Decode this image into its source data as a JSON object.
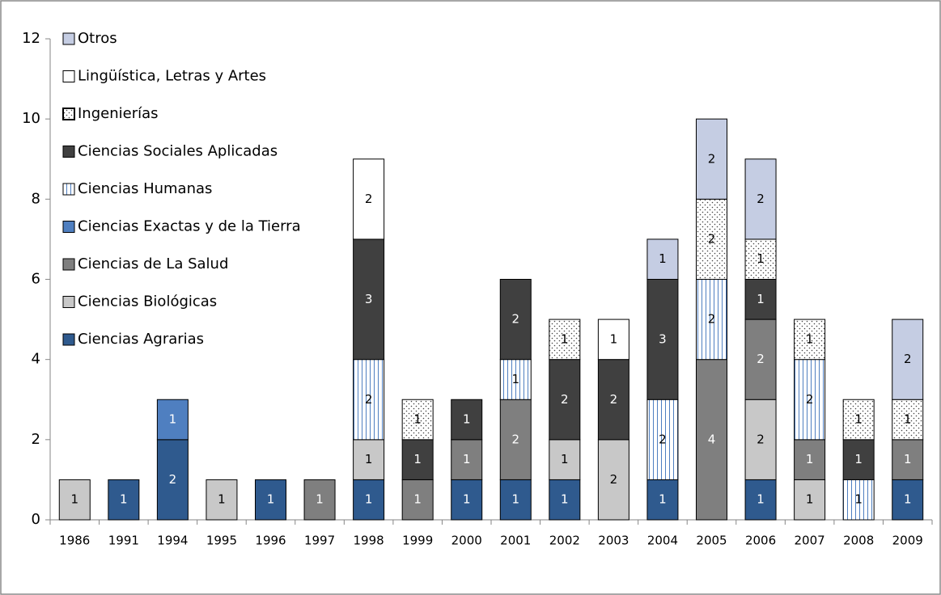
{
  "chart_data": {
    "type": "stacked-bar",
    "categories": [
      "1986",
      "1991",
      "1994",
      "1995",
      "1996",
      "1997",
      "1998",
      "1999",
      "2000",
      "2001",
      "2002",
      "2003",
      "2004",
      "2005",
      "2006",
      "2007",
      "2008",
      "2009"
    ],
    "series": [
      {
        "name": "Ciencias Agrarias",
        "color": "#2f5a8e",
        "values": [
          null,
          1,
          2,
          null,
          1,
          null,
          1,
          null,
          1,
          1,
          1,
          null,
          1,
          null,
          1,
          null,
          null,
          1
        ]
      },
      {
        "name": "Ciencias Biológicas",
        "color": "#c8c8c8",
        "values": [
          1,
          null,
          null,
          1,
          null,
          null,
          1,
          null,
          null,
          null,
          1,
          2,
          null,
          null,
          2,
          1,
          null,
          null
        ]
      },
      {
        "name": "Ciencias de La Salud",
        "color": "#7f7f7f",
        "values": [
          null,
          null,
          null,
          null,
          null,
          1,
          null,
          1,
          1,
          2,
          null,
          null,
          null,
          4,
          2,
          1,
          null,
          1
        ]
      },
      {
        "name": "Ciencias Exactas y de la Tierra",
        "color": "#4f7fc0",
        "values": [
          null,
          null,
          1,
          null,
          null,
          null,
          null,
          null,
          null,
          null,
          null,
          null,
          null,
          null,
          null,
          null,
          null,
          null
        ]
      },
      {
        "name": "Ciencias Humanas",
        "color": "#ffffff",
        "hatch": "vertical",
        "values": [
          null,
          null,
          null,
          null,
          null,
          null,
          2,
          null,
          null,
          1,
          null,
          null,
          2,
          2,
          null,
          2,
          1,
          null
        ]
      },
      {
        "name": "Ciencias Sociales Aplicadas",
        "color": "#404040",
        "values": [
          null,
          null,
          null,
          null,
          null,
          null,
          3,
          1,
          1,
          2,
          2,
          2,
          3,
          null,
          1,
          null,
          1,
          null
        ]
      },
      {
        "name": "Ingenierías",
        "color": "#ffffff",
        "hatch": "dots",
        "values": [
          null,
          null,
          null,
          null,
          null,
          null,
          null,
          1,
          null,
          null,
          1,
          null,
          null,
          2,
          1,
          1,
          1,
          1
        ]
      },
      {
        "name": "Lingüística, Letras y Artes",
        "color": "#ffffff",
        "values": [
          null,
          null,
          null,
          null,
          null,
          null,
          2,
          null,
          null,
          null,
          null,
          1,
          null,
          null,
          null,
          null,
          null,
          null
        ]
      },
      {
        "name": "Otros",
        "color": "#c5cde3",
        "values": [
          null,
          null,
          null,
          null,
          null,
          null,
          null,
          null,
          null,
          null,
          null,
          null,
          1,
          2,
          2,
          null,
          null,
          2
        ]
      }
    ],
    "ylim": [
      0,
      12
    ],
    "yticks": [
      0,
      2,
      4,
      6,
      8,
      10,
      12
    ],
    "legend": "top-left"
  }
}
